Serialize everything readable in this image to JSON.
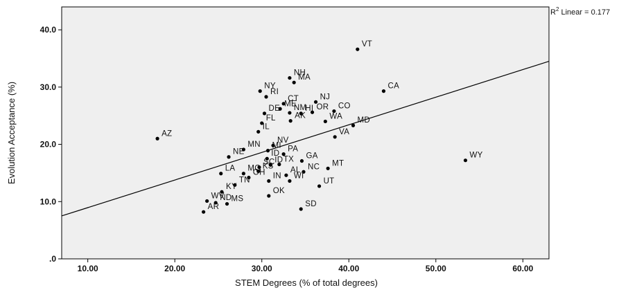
{
  "chart_data": {
    "type": "scatter",
    "xlabel": "STEM Degrees (% of total degrees)",
    "ylabel": "Evolution Acceptance (%)",
    "xlim": [
      7.0,
      63.0
    ],
    "ylim": [
      0.0,
      44.0
    ],
    "xticks": [
      "10.00",
      "20.00",
      "30.00",
      "40.00",
      "50.00",
      "60.00"
    ],
    "xtick_values": [
      10,
      20,
      30,
      40,
      50,
      60
    ],
    "yticks": [
      ".0",
      "10.0",
      "20.0",
      "30.0",
      "40.0"
    ],
    "ytick_values": [
      0,
      10,
      20,
      30,
      40
    ],
    "grid": false,
    "background": "#efefef",
    "marker_color": "#000000",
    "fit_line": {
      "label_prefix": "R",
      "label_sup": "2",
      "label_suffix": " Linear = 0.177",
      "x": [
        7.0,
        63.0
      ],
      "y": [
        7.5,
        34.5
      ]
    },
    "points": [
      {
        "label": "VT",
        "x": 41.0,
        "y": 36.6
      },
      {
        "label": "CA",
        "x": 44.0,
        "y": 29.3
      },
      {
        "label": "NH",
        "x": 33.2,
        "y": 31.6
      },
      {
        "label": "MA",
        "x": 33.7,
        "y": 30.8
      },
      {
        "label": "NY",
        "x": 29.8,
        "y": 29.3
      },
      {
        "label": "RI",
        "x": 30.5,
        "y": 28.3
      },
      {
        "label": "NJ",
        "x": 36.2,
        "y": 27.4
      },
      {
        "label": "CT",
        "x": 32.5,
        "y": 27.1
      },
      {
        "label": "CO",
        "x": 38.3,
        "y": 25.8
      },
      {
        "label": "DE",
        "x": 30.3,
        "y": 25.4
      },
      {
        "label": "ME",
        "x": 32.1,
        "y": 26.2
      },
      {
        "label": "NM",
        "x": 33.2,
        "y": 25.5
      },
      {
        "label": "HI",
        "x": 34.5,
        "y": 25.4
      },
      {
        "label": "OR",
        "x": 35.8,
        "y": 25.6
      },
      {
        "label": "WA",
        "x": 37.3,
        "y": 24.0
      },
      {
        "label": "FL",
        "x": 30.0,
        "y": 23.7
      },
      {
        "label": "AK",
        "x": 33.3,
        "y": 24.1
      },
      {
        "label": "MD",
        "x": 40.5,
        "y": 23.3
      },
      {
        "label": "AZ",
        "x": 18.0,
        "y": 21.0
      },
      {
        "label": "IL",
        "x": 29.6,
        "y": 22.2
      },
      {
        "label": "VA",
        "x": 38.4,
        "y": 21.3
      },
      {
        "label": "NV",
        "x": 31.3,
        "y": 19.8
      },
      {
        "label": "MN",
        "x": 27.9,
        "y": 19.1
      },
      {
        "label": "MI",
        "x": 30.7,
        "y": 18.9
      },
      {
        "label": "PA",
        "x": 32.5,
        "y": 18.3
      },
      {
        "label": "NE",
        "x": 26.2,
        "y": 17.8
      },
      {
        "label": "ID",
        "x": 30.6,
        "y": 17.5
      },
      {
        "label": "TX",
        "x": 32.0,
        "y": 16.5
      },
      {
        "label": "GA",
        "x": 34.6,
        "y": 17.1
      },
      {
        "label": "SC",
        "x": 29.7,
        "y": 16.0
      },
      {
        "label": "MT",
        "x": 37.6,
        "y": 15.8
      },
      {
        "label": "NC",
        "x": 34.8,
        "y": 15.2
      },
      {
        "label": "MO",
        "x": 27.9,
        "y": 14.9
      },
      {
        "label": "KS",
        "x": 29.6,
        "y": 15.3
      },
      {
        "label": "ID",
        "x": 31.0,
        "y": 16.4
      },
      {
        "label": "LA",
        "x": 25.3,
        "y": 14.9
      },
      {
        "label": "OH",
        "x": 28.5,
        "y": 14.2
      },
      {
        "label": "AL",
        "x": 32.8,
        "y": 14.6
      },
      {
        "label": "WI",
        "x": 33.2,
        "y": 13.6
      },
      {
        "label": "IN",
        "x": 30.8,
        "y": 13.6
      },
      {
        "label": "UT",
        "x": 36.6,
        "y": 12.7
      },
      {
        "label": "TN",
        "x": 26.9,
        "y": 12.9
      },
      {
        "label": "KY",
        "x": 25.4,
        "y": 11.7
      },
      {
        "label": "OK",
        "x": 30.8,
        "y": 11.0
      },
      {
        "label": "WV",
        "x": 23.7,
        "y": 10.1
      },
      {
        "label": "ND",
        "x": 24.7,
        "y": 9.8
      },
      {
        "label": "MS",
        "x": 26.0,
        "y": 9.6
      },
      {
        "label": "SD",
        "x": 34.5,
        "y": 8.7
      },
      {
        "label": "AR",
        "x": 23.3,
        "y": 8.2
      },
      {
        "label": "WY",
        "x": 53.4,
        "y": 17.2
      }
    ]
  }
}
